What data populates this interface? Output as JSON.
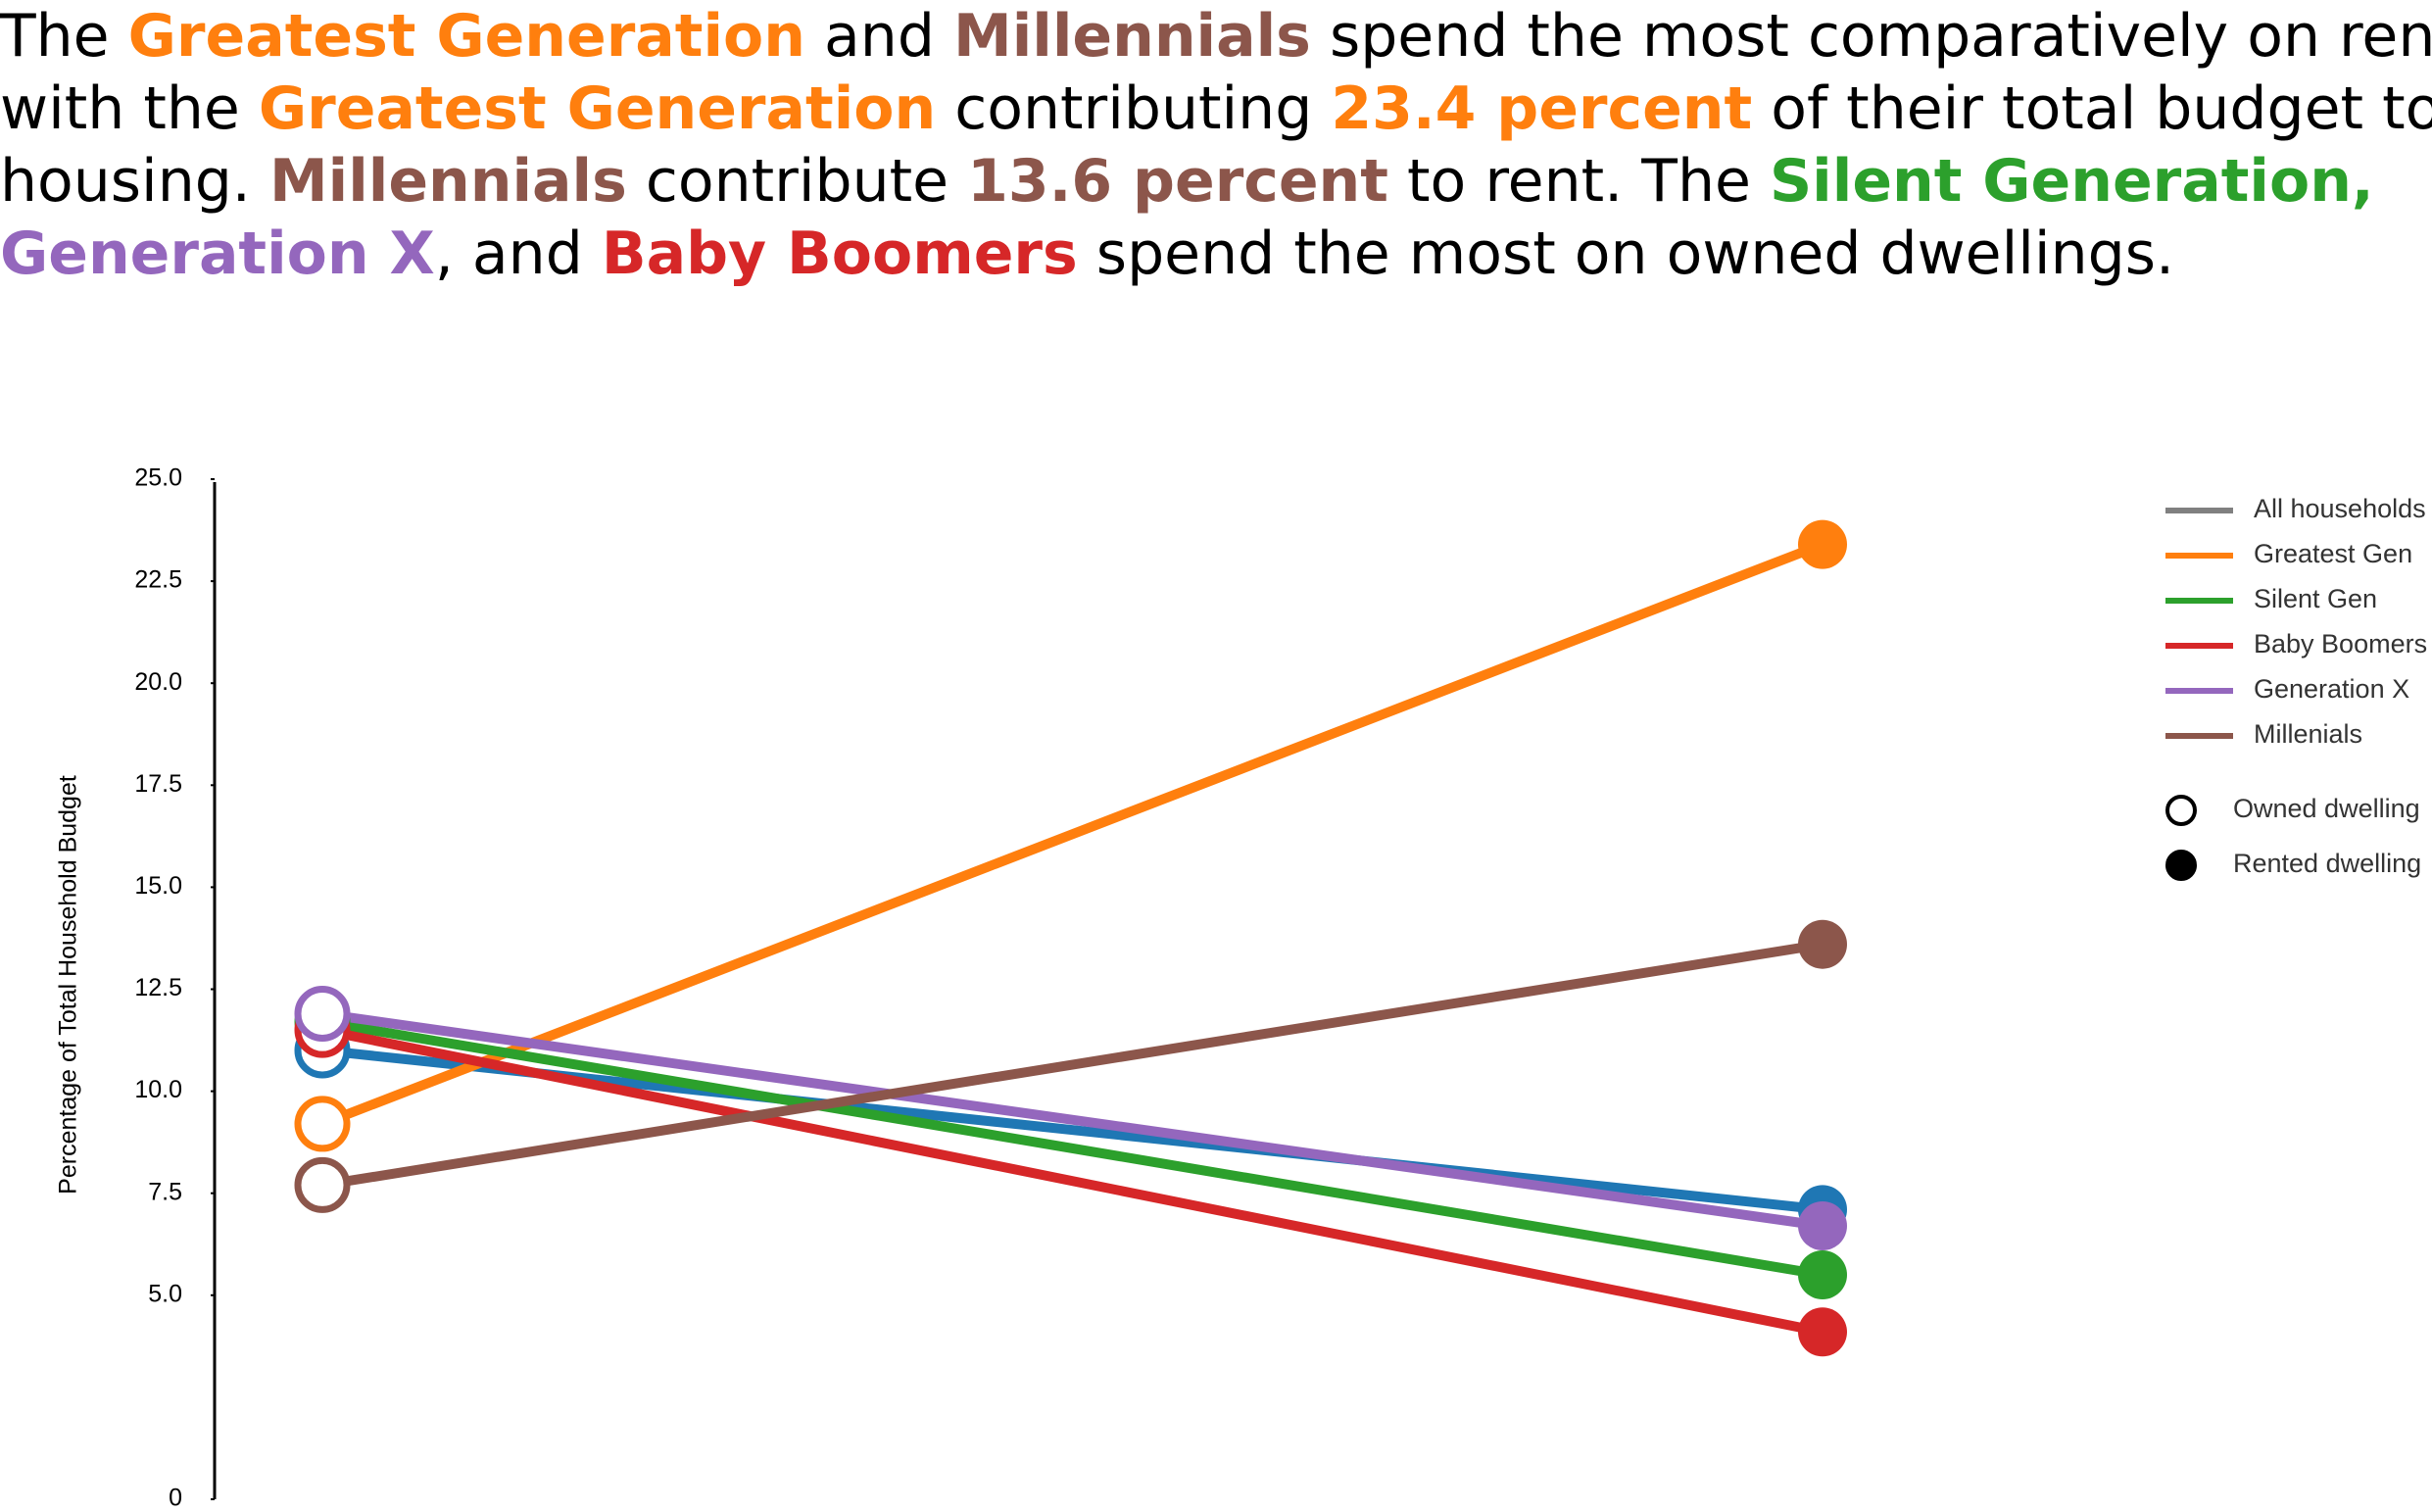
{
  "headline": [
    [
      {
        "text": "The ",
        "color": "#000000",
        "bold": false
      },
      {
        "text": "Greatest Generation",
        "color": "#ff7f0e",
        "bold": true
      },
      {
        "text": " and ",
        "color": "#000000",
        "bold": false
      },
      {
        "text": "Millennials",
        "color": "#8c564b",
        "bold": true
      },
      {
        "text": " spend the most comparatively on rent,",
        "color": "#000000",
        "bold": false
      }
    ],
    [
      {
        "text": "with the ",
        "color": "#000000",
        "bold": false
      },
      {
        "text": "Greatest Generation",
        "color": "#ff7f0e",
        "bold": true
      },
      {
        "text": " contributing ",
        "color": "#000000",
        "bold": false
      },
      {
        "text": "23.4 percent",
        "color": "#ff7f0e",
        "bold": true
      },
      {
        "text": " of their total budget to",
        "color": "#000000",
        "bold": false
      }
    ],
    [
      {
        "text": "housing. ",
        "color": "#000000",
        "bold": false
      },
      {
        "text": "Millennials",
        "color": "#8c564b",
        "bold": true
      },
      {
        "text": " contribute ",
        "color": "#000000",
        "bold": false
      },
      {
        "text": "13.6 percent",
        "color": "#8c564b",
        "bold": true
      },
      {
        "text": " to rent. The ",
        "color": "#000000",
        "bold": false
      },
      {
        "text": "Silent Generation,",
        "color": "#2ca02c",
        "bold": true
      }
    ],
    [
      {
        "text": "Generation X",
        "color": "#9467bd",
        "bold": true
      },
      {
        "text": ", and ",
        "color": "#000000",
        "bold": false
      },
      {
        "text": "Baby Boomers",
        "color": "#d62728",
        "bold": true
      },
      {
        "text": " spend the most on owned dwellings.",
        "color": "#000000",
        "bold": false
      }
    ]
  ],
  "chart_data": {
    "type": "slope",
    "y_label": "Percentage of Total Household Budget",
    "ylim": [
      0,
      25
    ],
    "yticks": [
      {
        "value": 0,
        "label": "0"
      },
      {
        "value": 5,
        "label": "5.0"
      },
      {
        "value": 7.5,
        "label": "7.5"
      },
      {
        "value": 10,
        "label": "10.0"
      },
      {
        "value": 12.5,
        "label": "12.5"
      },
      {
        "value": 15,
        "label": "15.0"
      },
      {
        "value": 17.5,
        "label": "17.5"
      },
      {
        "value": 20,
        "label": "20.0"
      },
      {
        "value": 22.5,
        "label": "22.5"
      },
      {
        "value": 25,
        "label": "25.0"
      }
    ],
    "marker_legend": [
      "Owned dwelling",
      "Rented dwelling"
    ],
    "series": [
      {
        "name": "All households",
        "color": "#1f77b4",
        "legend_color": "#808080",
        "values": [
          11.0,
          7.1
        ]
      },
      {
        "name": "Greatest Gen",
        "color": "#ff7f0e",
        "legend_color": "#ff7f0e",
        "values": [
          9.2,
          23.4
        ]
      },
      {
        "name": "Silent Gen",
        "color": "#2ca02c",
        "legend_color": "#2ca02c",
        "values": [
          11.7,
          5.5
        ]
      },
      {
        "name": "Baby Boomers",
        "color": "#d62728",
        "legend_color": "#d62728",
        "values": [
          11.5,
          4.1
        ]
      },
      {
        "name": "Generation X",
        "color": "#9467bd",
        "legend_color": "#9467bd",
        "values": [
          11.9,
          6.7
        ]
      },
      {
        "name": "Millenials",
        "color": "#8c564b",
        "legend_color": "#8c564b",
        "values": [
          7.7,
          13.6
        ]
      }
    ]
  }
}
